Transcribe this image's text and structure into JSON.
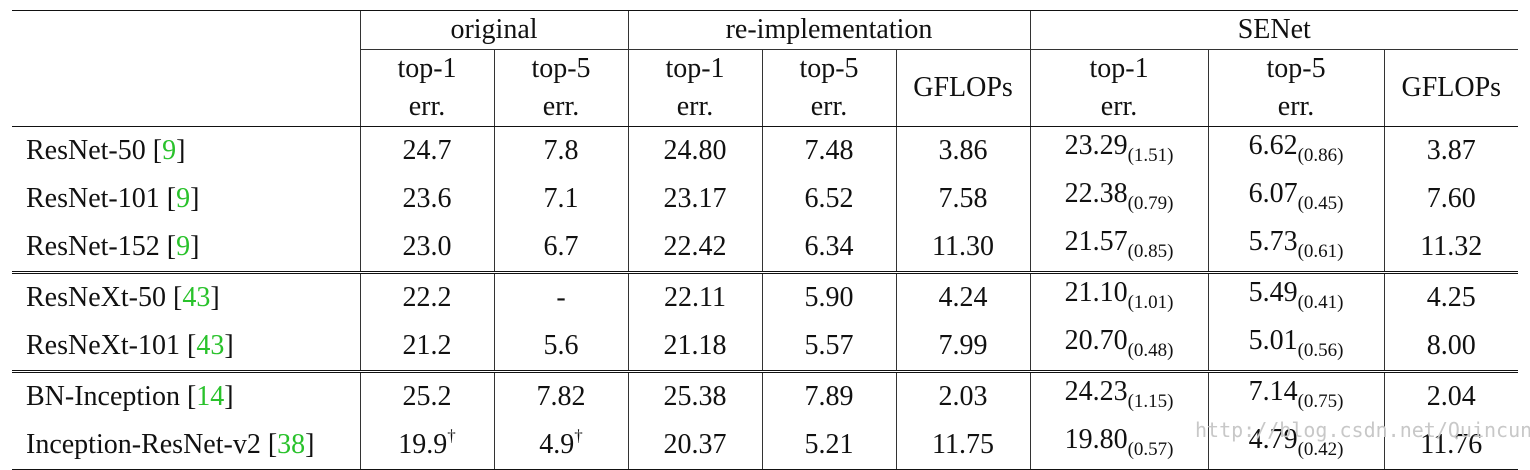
{
  "headers": {
    "group_original": "original",
    "group_reimpl": "re-implementation",
    "group_senet": "SENet",
    "top1_line1": "top-1",
    "top1_line2": "err.",
    "top5_line1": "top-5",
    "top5_line2": "err.",
    "gflops": "GFLOPs"
  },
  "rows": [
    {
      "name": "ResNet-50 ",
      "cite": "9",
      "o1": "24.7",
      "o5": "7.8",
      "r1": "24.80",
      "r5": "7.48",
      "rg": "3.86",
      "s1": "23.29",
      "s1d": "(1.51)",
      "s5": "6.62",
      "s5d": "(0.86)",
      "sg": "3.87"
    },
    {
      "name": "ResNet-101 ",
      "cite": "9",
      "o1": "23.6",
      "o5": "7.1",
      "r1": "23.17",
      "r5": "6.52",
      "rg": "7.58",
      "s1": "22.38",
      "s1d": "(0.79)",
      "s5": "6.07",
      "s5d": "(0.45)",
      "sg": "7.60"
    },
    {
      "name": "ResNet-152 ",
      "cite": "9",
      "o1": "23.0",
      "o5": "6.7",
      "r1": "22.42",
      "r5": "6.34",
      "rg": "11.30",
      "s1": "21.57",
      "s1d": "(0.85)",
      "s5": "5.73",
      "s5d": "(0.61)",
      "sg": "11.32"
    },
    {
      "name": "ResNeXt-50 ",
      "cite": "43",
      "o1": "22.2",
      "o5": "-",
      "r1": "22.11",
      "r5": "5.90",
      "rg": "4.24",
      "s1": "21.10",
      "s1d": "(1.01)",
      "s5": "5.49",
      "s5d": "(0.41)",
      "sg": "4.25"
    },
    {
      "name": "ResNeXt-101 ",
      "cite": "43",
      "o1": "21.2",
      "o5": "5.6",
      "r1": "21.18",
      "r5": "5.57",
      "rg": "7.99",
      "s1": "20.70",
      "s1d": "(0.48)",
      "s5": "5.01",
      "s5d": "(0.56)",
      "sg": "8.00"
    },
    {
      "name": "BN-Inception ",
      "cite": "14",
      "o1": "25.2",
      "o5": "7.82",
      "r1": "25.38",
      "r5": "7.89",
      "rg": "2.03",
      "s1": "24.23",
      "s1d": "(1.15)",
      "s5": "7.14",
      "s5d": "(0.75)",
      "sg": "2.04"
    },
    {
      "name": "Inception-ResNet-v2 ",
      "cite": "38",
      "o1": "19.9",
      "o1sup": "†",
      "o5": "4.9",
      "o5sup": "†",
      "r1": "20.37",
      "r5": "5.21",
      "rg": "11.75",
      "s1": "19.80",
      "s1d": "(0.57)",
      "s5": "4.79",
      "s5d": "(0.42)",
      "sg": "11.76"
    }
  ],
  "punct": {
    "lb": "[",
    "rb": "]"
  },
  "watermark": "http://blog.csdn.net/Quincuntial"
}
